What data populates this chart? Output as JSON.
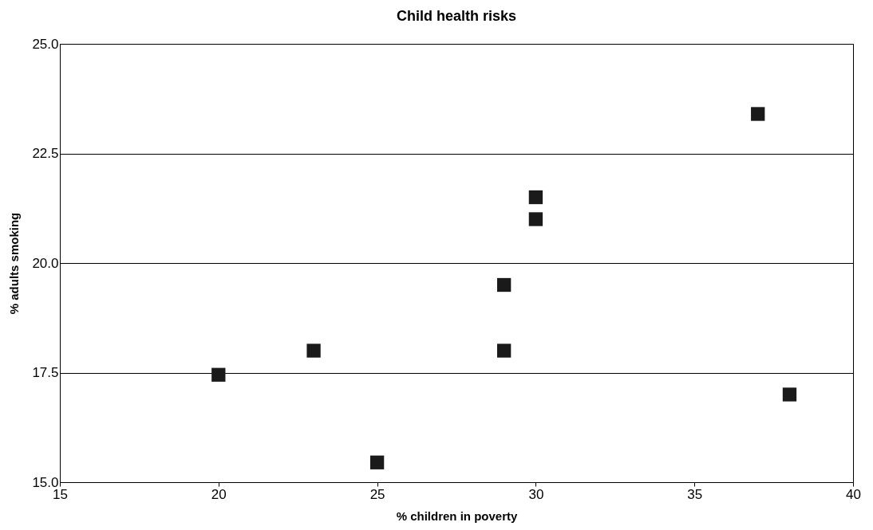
{
  "chart_data": {
    "type": "scatter",
    "title": "Child health risks",
    "xlabel": "% children in poverty",
    "ylabel": "% adults smoking",
    "x": [
      20,
      23,
      25,
      29,
      29,
      30,
      30,
      37,
      38
    ],
    "series": [
      {
        "color": "#1a1a1a",
        "values": [
          17.45,
          18.0,
          15.45,
          18.0,
          19.5,
          21.0,
          21.5,
          23.4,
          17.0
        ]
      }
    ],
    "xlim": [
      15,
      40
    ],
    "xticks": [
      15,
      20,
      25,
      30,
      35,
      40
    ],
    "ylim": [
      15,
      25
    ],
    "yticks": [
      {
        "value": 15,
        "label": "15.0"
      },
      {
        "value": 17.5,
        "label": "17.5"
      },
      {
        "value": 20,
        "label": "20.0"
      },
      {
        "value": 22.5,
        "label": "22.5"
      },
      {
        "value": 25,
        "label": "25.0"
      }
    ],
    "grid": "y",
    "marker": "square",
    "legend": false
  }
}
